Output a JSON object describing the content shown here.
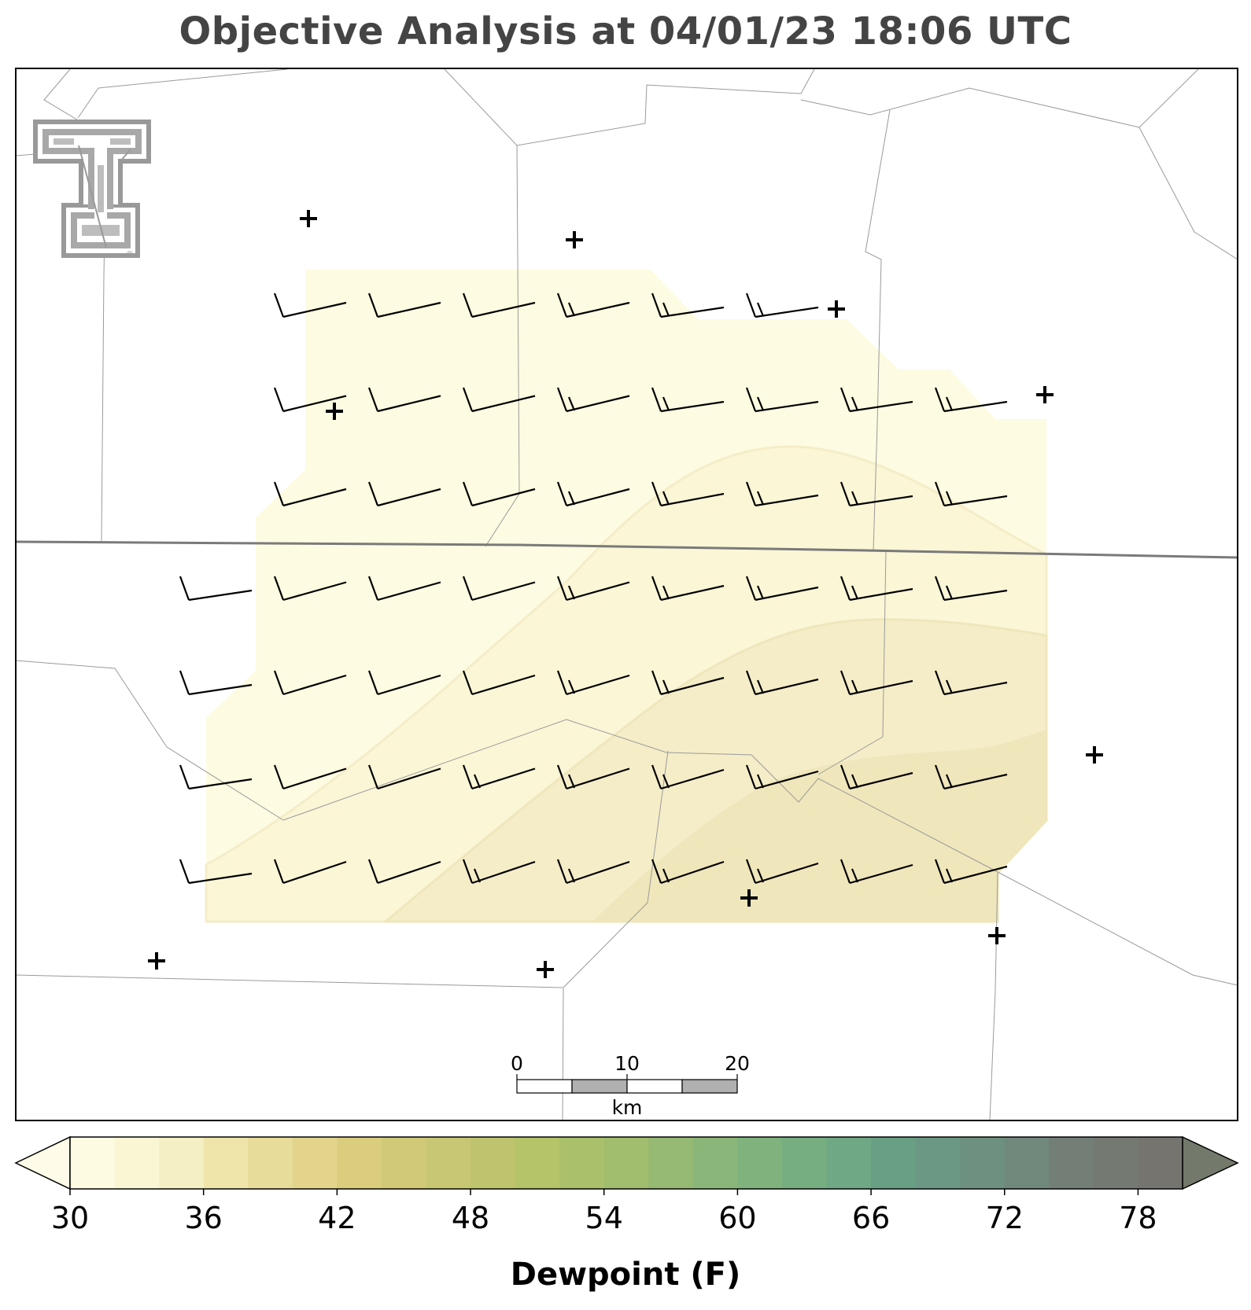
{
  "title": "Objective Analysis at 04/01/23 18:06 UTC",
  "colorbar": {
    "label": "Dewpoint (F)",
    "min": 30,
    "max": 80,
    "step": 2,
    "extend": "both",
    "ticks": [
      "30",
      "36",
      "42",
      "48",
      "54",
      "60",
      "66",
      "72",
      "78"
    ],
    "colors": [
      "#fdfbe1",
      "#faf6d3",
      "#f5efc4",
      "#efe5ab",
      "#e8dc9a",
      "#e2d48b",
      "#dacd7e",
      "#d1c978",
      "#c8c774",
      "#bec46e",
      "#b5c369",
      "#abc06a",
      "#a1bd6e",
      "#96b973",
      "#8bb679",
      "#80b27d",
      "#76ae81",
      "#6ea884",
      "#69a085",
      "#6b9884",
      "#6e9080",
      "#71887c",
      "#737f76",
      "#747972",
      "#75746e"
    ],
    "under_color": "#fefce8",
    "over_color": "#737a6b"
  },
  "scale_bar": {
    "labels": [
      "0",
      "10",
      "20"
    ],
    "unit": "km"
  },
  "stations": [
    "station-1",
    "station-2",
    "station-3",
    "station-4",
    "station-5",
    "station-6",
    "station-7",
    "station-8",
    "station-9",
    "station-10",
    "station-11"
  ],
  "wind_barbs": {
    "rows": 7,
    "note_text": ""
  },
  "logo": {
    "name": "double-t-logo",
    "text": "®"
  },
  "contour_fill_colors": [
    "#fdfbe1",
    "#faf6d6",
    "#f4edc8",
    "#efe6bb"
  ]
}
